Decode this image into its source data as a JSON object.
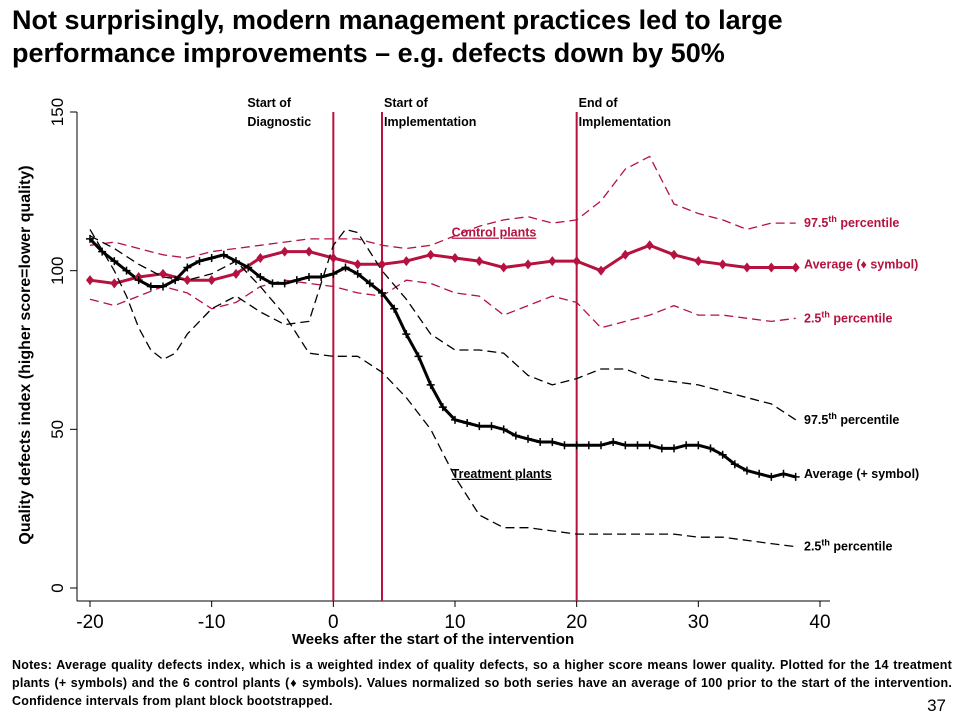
{
  "title": "Not surprisingly, modern management practices led to large performance improvements – e.g. defects down by 50%",
  "notes": "Notes: Average quality defects index, which is a weighted index of quality defects, so a higher score means lower quality. Plotted for the 14 treatment plants (+ symbols) and the 6 control plants (♦ symbols). Values normalized so both series have an average of 100 prior to the start of the intervention. Confidence intervals from plant block bootstrapped.",
  "page_number": "37",
  "colors": {
    "control": "#b5123f",
    "treatment": "#000000",
    "event_line": "#b5123f"
  },
  "chart_data": {
    "type": "line",
    "xlabel": "Weeks after the start of the intervention",
    "ylabel": "Quality defects index (higher score=lower quality)",
    "xlim": [
      -21,
      41
    ],
    "ylim": [
      -5,
      155
    ],
    "xticks": [
      -20,
      -10,
      0,
      10,
      20,
      30,
      40
    ],
    "xtick_labels": [
      "-20",
      "-10",
      "0",
      "10",
      "20",
      "30",
      "40"
    ],
    "yticks": [
      0,
      50,
      100,
      150
    ],
    "ytick_labels": [
      "0",
      "50",
      "100",
      "150"
    ],
    "grid": false,
    "events": [
      {
        "x": 0,
        "label1": "Start of",
        "label2": "Diagnostic"
      },
      {
        "x": 4,
        "label1": "Start of",
        "label2": "Implementation"
      },
      {
        "x": 20,
        "label1": "End of",
        "label2": "Implementation"
      }
    ],
    "group_labels": [
      {
        "text": "Control plants",
        "x": 14,
        "y": 112,
        "color": "#b5123f"
      },
      {
        "text": "Treatment plants",
        "x": 14,
        "y": 36,
        "color": "#000000"
      }
    ],
    "series": [
      {
        "group": "control",
        "kind": "upper",
        "label": "97.5th percentile",
        "label_y": 115,
        "color": "#b5123f",
        "dash": true,
        "marker": "none",
        "x": [
          -20,
          -18,
          -16,
          -14,
          -12,
          -10,
          -8,
          -6,
          -4,
          -2,
          0,
          2,
          4,
          6,
          8,
          10,
          12,
          14,
          16,
          18,
          20,
          22,
          24,
          26,
          28,
          30,
          32,
          34,
          36,
          38
        ],
        "y": [
          108,
          109,
          107,
          105,
          104,
          106,
          107,
          108,
          109,
          110,
          110,
          110,
          108,
          107,
          108,
          111,
          114,
          116,
          117,
          115,
          116,
          122,
          132,
          136,
          121,
          118,
          116,
          113,
          115,
          115
        ]
      },
      {
        "group": "control",
        "kind": "mean",
        "label": "Average (♦ symbol)",
        "label_y": 102,
        "color": "#b5123f",
        "dash": false,
        "marker": "diamond",
        "x": [
          -20,
          -18,
          -16,
          -14,
          -12,
          -10,
          -8,
          -6,
          -4,
          -2,
          0,
          2,
          4,
          6,
          8,
          10,
          12,
          14,
          16,
          18,
          20,
          22,
          24,
          26,
          28,
          30,
          32,
          34,
          36,
          38
        ],
        "y": [
          97,
          96,
          98,
          99,
          97,
          97,
          99,
          104,
          106,
          106,
          104,
          102,
          102,
          103,
          105,
          104,
          103,
          101,
          102,
          103,
          103,
          100,
          105,
          108,
          105,
          103,
          102,
          101,
          101,
          101
        ]
      },
      {
        "group": "control",
        "kind": "lower",
        "label": "2.5th percentile",
        "label_y": 85,
        "color": "#b5123f",
        "dash": true,
        "marker": "none",
        "x": [
          -20,
          -18,
          -16,
          -14,
          -12,
          -10,
          -8,
          -6,
          -4,
          -2,
          0,
          2,
          4,
          6,
          8,
          10,
          12,
          14,
          16,
          18,
          20,
          22,
          24,
          26,
          28,
          30,
          32,
          34,
          36,
          38
        ],
        "y": [
          91,
          89,
          92,
          95,
          93,
          88,
          90,
          95,
          97,
          96,
          95,
          93,
          92,
          97,
          96,
          93,
          92,
          86,
          89,
          92,
          90,
          82,
          84,
          86,
          89,
          86,
          86,
          85,
          84,
          85
        ]
      },
      {
        "group": "treatment",
        "kind": "upper",
        "label": "97.5th percentile",
        "label_y": 53,
        "color": "#000000",
        "dash": true,
        "marker": "none",
        "x": [
          -20,
          -18,
          -17,
          -16,
          -15,
          -14,
          -13,
          -12,
          -10,
          -8,
          -6,
          -4,
          -2,
          0,
          1,
          2,
          4,
          6,
          8,
          10,
          12,
          14,
          16,
          18,
          20,
          22,
          24,
          26,
          28,
          30,
          32,
          34,
          36,
          38
        ],
        "y": [
          113,
          100,
          92,
          82,
          75,
          72,
          74,
          80,
          88,
          92,
          87,
          83,
          84,
          108,
          113,
          112,
          100,
          91,
          80,
          75,
          75,
          74,
          67,
          64,
          66,
          69,
          69,
          66,
          65,
          64,
          62,
          60,
          58,
          53
        ]
      },
      {
        "group": "treatment",
        "kind": "mean",
        "label": "Average (+ symbol)",
        "label_y": 36,
        "color": "#000000",
        "dash": false,
        "marker": "plus",
        "x": [
          -20,
          -19,
          -18,
          -17,
          -16,
          -15,
          -14,
          -13,
          -12,
          -11,
          -10,
          -9,
          -8,
          -7,
          -6,
          -5,
          -4,
          -3,
          -2,
          -1,
          0,
          1,
          2,
          3,
          4,
          5,
          6,
          7,
          8,
          9,
          10,
          11,
          12,
          13,
          14,
          15,
          16,
          17,
          18,
          19,
          20,
          21,
          22,
          23,
          24,
          25,
          26,
          27,
          28,
          29,
          30,
          31,
          32,
          33,
          34,
          35,
          36,
          37,
          38
        ],
        "y": [
          110,
          106,
          103,
          100,
          97,
          95,
          95,
          97,
          101,
          103,
          104,
          105,
          103,
          101,
          98,
          96,
          96,
          97,
          98,
          98,
          99,
          101,
          99,
          96,
          93,
          88,
          80,
          73,
          64,
          57,
          53,
          52,
          51,
          51,
          50,
          48,
          47,
          46,
          46,
          45,
          45,
          45,
          45,
          46,
          45,
          45,
          45,
          44,
          44,
          45,
          45,
          44,
          42,
          39,
          37,
          36,
          35,
          36,
          35
        ]
      },
      {
        "group": "treatment",
        "kind": "lower",
        "label": "2.5th percentile",
        "label_y": 13,
        "color": "#000000",
        "dash": true,
        "marker": "none",
        "x": [
          -20,
          -18,
          -16,
          -14,
          -12,
          -10,
          -8,
          -6,
          -4,
          -2,
          0,
          2,
          4,
          6,
          8,
          10,
          12,
          14,
          16,
          18,
          20,
          22,
          24,
          26,
          28,
          30,
          32,
          34,
          36,
          38
        ],
        "y": [
          111,
          107,
          102,
          98,
          97,
          99,
          103,
          95,
          86,
          74,
          73,
          73,
          68,
          60,
          50,
          35,
          23,
          19,
          19,
          18,
          17,
          17,
          17,
          17,
          17,
          16,
          16,
          15,
          14,
          13
        ]
      }
    ]
  }
}
